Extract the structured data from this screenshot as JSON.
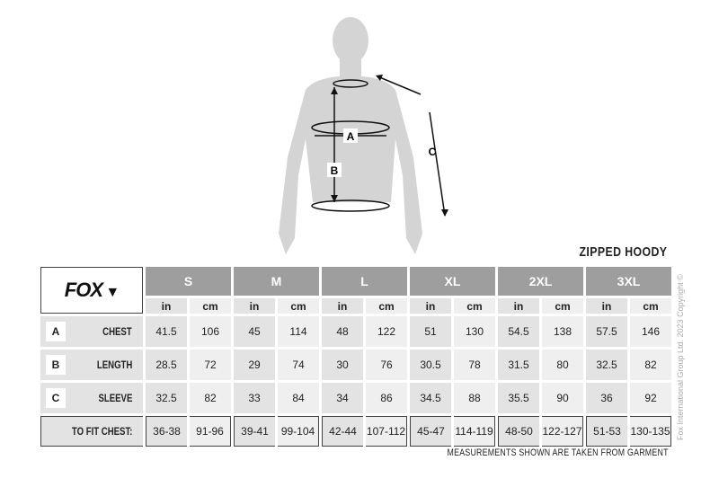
{
  "title": "ZIPPED HOODY",
  "brand": "FOX",
  "figure_labels": {
    "a": "A",
    "b": "B",
    "c": "C"
  },
  "sizes": [
    {
      "label": "S",
      "unit_in": "in",
      "unit_cm": "cm"
    },
    {
      "label": "M",
      "unit_in": "in",
      "unit_cm": "cm"
    },
    {
      "label": "L",
      "unit_in": "in",
      "unit_cm": "cm"
    },
    {
      "label": "XL",
      "unit_in": "in",
      "unit_cm": "cm"
    },
    {
      "label": "2XL",
      "unit_in": "in",
      "unit_cm": "cm"
    },
    {
      "label": "3XL",
      "unit_in": "in",
      "unit_cm": "cm"
    }
  ],
  "rows": [
    {
      "letter": "A",
      "name": "CHEST",
      "values": [
        [
          "41.5",
          "106"
        ],
        [
          "45",
          "114"
        ],
        [
          "48",
          "122"
        ],
        [
          "51",
          "130"
        ],
        [
          "54.5",
          "138"
        ],
        [
          "57.5",
          "146"
        ]
      ]
    },
    {
      "letter": "B",
      "name": "LENGTH",
      "values": [
        [
          "28.5",
          "72"
        ],
        [
          "29",
          "74"
        ],
        [
          "30",
          "76"
        ],
        [
          "30.5",
          "78"
        ],
        [
          "31.5",
          "80"
        ],
        [
          "32.5",
          "82"
        ]
      ]
    },
    {
      "letter": "C",
      "name": "SLEEVE",
      "values": [
        [
          "32.5",
          "82"
        ],
        [
          "33",
          "84"
        ],
        [
          "34",
          "86"
        ],
        [
          "34.5",
          "88"
        ],
        [
          "35.5",
          "90"
        ],
        [
          "36",
          "92"
        ]
      ]
    }
  ],
  "fit": {
    "label": "TO FIT CHEST:",
    "values": [
      [
        "36-38",
        "91-96"
      ],
      [
        "39-41",
        "99-104"
      ],
      [
        "42-44",
        "107-112"
      ],
      [
        "45-47",
        "114-119"
      ],
      [
        "48-50",
        "122-127"
      ],
      [
        "51-53",
        "130-135"
      ]
    ]
  },
  "note": "MEASUREMENTS SHOWN ARE TAKEN FROM GARMENT",
  "copyright": "Fox International Group Ltd. 2023 Copyright ©",
  "colors": {
    "header": "#9e9e9e",
    "cell_dark": "#e3e3e3",
    "cell_light": "#efefef",
    "figure": "#d4d4d4"
  }
}
